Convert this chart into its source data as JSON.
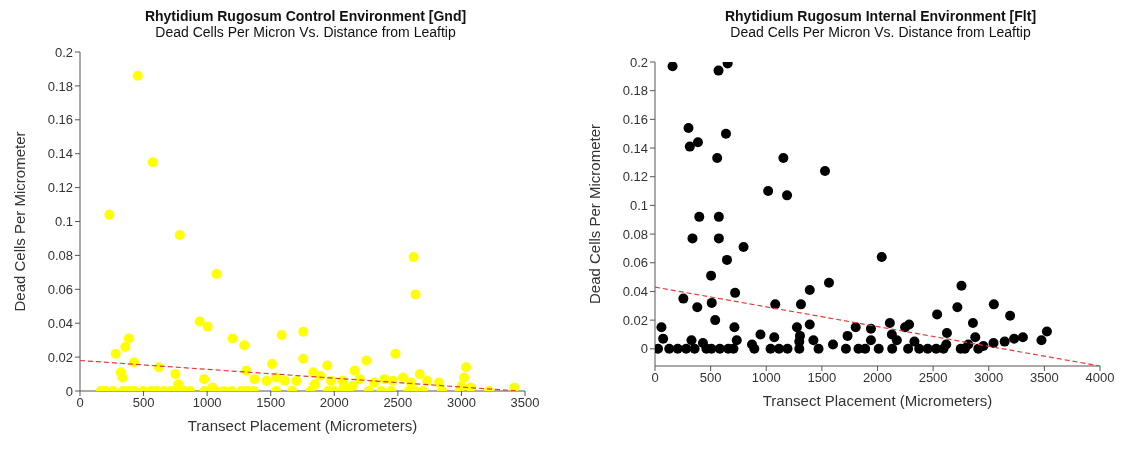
{
  "chart_data": [
    {
      "type": "scatter",
      "title": "Rhytidium Rugosum Control Environment [Gnd]",
      "subtitle": "Dead Cells Per Micron Vs. Distance from Leaftip",
      "xlabel": "Transect Placement (Micrometers)",
      "ylabel": "Dead Cells Per Micrometer",
      "xlim": [
        0,
        3500
      ],
      "xticks": [
        0,
        500,
        1000,
        1500,
        2000,
        2500,
        3000,
        3500
      ],
      "ylim": [
        0,
        0.2
      ],
      "yticks": [
        0,
        0.02,
        0.04,
        0.06,
        0.08,
        0.1,
        0.12,
        0.14,
        0.16,
        0.18,
        0.2
      ],
      "grid": false,
      "marker": "circle",
      "series": [
        {
          "color": "#ffff00",
          "x": [
            454,
            572,
            231,
            785,
            1074,
            2624,
            2639,
            941,
            1004,
            1199,
            1292,
            1586,
            1756,
            281,
            356,
            384,
            424,
            321,
            334,
            620,
            750,
            773,
            976,
            1041,
            1307,
            1510,
            1543,
            1611,
            1756,
            1834,
            1889,
            1945,
            1975,
            2065,
            2160,
            2200,
            2253,
            2313,
            2396,
            2461,
            2481,
            2541,
            2602,
            2672,
            2730,
            2823,
            3001,
            3021,
            3036,
            3073,
            3415,
            1372,
            1468,
            1701,
            1847,
            2075,
            2145,
            163,
            201,
            259,
            339,
            382,
            427,
            497,
            560,
            602,
            660,
            715,
            765,
            816,
            866,
            979,
            1066,
            1129,
            1192,
            1267,
            1317,
            1368,
            1543,
            1669,
            1814,
            1952,
            2002,
            2095,
            2271,
            2371,
            2446,
            2584,
            2634,
            2697,
            2848,
            2986,
            3217
          ],
          "values": [
            0.186,
            0.135,
            0.104,
            0.092,
            0.069,
            0.079,
            0.057,
            0.041,
            0.038,
            0.031,
            0.027,
            0.033,
            0.035,
            0.022,
            0.026,
            0.031,
            0.017,
            0.011,
            0.008,
            0.014,
            0.01,
            0.004,
            0.007,
            0.002,
            0.012,
            0.016,
            0.008,
            0.006,
            0.019,
            0.011,
            0.009,
            0.015,
            0.006,
            0.006,
            0.012,
            0.007,
            0.018,
            0.005,
            0.007,
            0.006,
            0.022,
            0.008,
            0.005,
            0.01,
            0.006,
            0.005,
            0.003,
            0.008,
            0.014,
            0.002,
            0.002,
            0.007,
            0.006,
            0.006,
            0.004,
            0.002,
            0.003,
            0,
            0,
            0,
            0,
            0,
            0,
            0,
            0,
            0,
            0,
            0,
            0,
            0,
            0,
            0,
            0,
            0,
            0,
            0,
            0,
            0,
            0,
            0,
            0,
            0,
            0,
            0,
            0,
            0,
            0,
            0,
            0,
            0,
            0,
            0,
            0
          ]
        },
        {
          "type": "line",
          "color": "#e03c3c",
          "line_style": "dashed",
          "marker": "none",
          "x": [
            0,
            3450
          ],
          "values": [
            0.018,
            0
          ]
        }
      ]
    },
    {
      "type": "scatter",
      "title": "Rhytidium Rugosum Internal Environment [Flt]",
      "subtitle": "Dead Cells Per Micron Vs. Distance from Leaftip",
      "xlabel": "Transect Placement (Micrometers)",
      "ylabel": "Dead Cells Per Micrometer",
      "xlim": [
        0,
        4000
      ],
      "xticks": [
        0,
        500,
        1000,
        1500,
        2000,
        2500,
        3000,
        3500,
        4000
      ],
      "ylim": [
        -0.012,
        0.2
      ],
      "yticks": [
        0,
        0.02,
        0.04,
        0.06,
        0.08,
        0.1,
        0.12,
        0.14,
        0.16,
        0.18,
        0.2
      ],
      "grid": false,
      "marker": "circle",
      "series": [
        {
          "color": "#000000",
          "x": [
            158,
            571,
            653,
            301,
            313,
            386,
            638,
            559,
            1154,
            1528,
            1017,
            1187,
            398,
            574,
            337,
            574,
            796,
            647,
            2038,
            504,
            1564,
            2755,
            255,
            720,
            1391,
            380,
            510,
            1081,
            1312,
            3046,
            2718,
            2536,
            3192,
            541,
            58,
            714,
            1276,
            1391,
            1804,
            1941,
            2111,
            2248,
            2284,
            2858,
            3523,
            2624,
            73,
            328,
            735,
            948,
            1072,
            1303,
            1424,
            1731,
            1941,
            2129,
            2332,
            2879,
            3043,
            3143,
            3228,
            3307,
            3474,
            2174,
            1297,
            1600,
            431,
            872,
            2618,
            2816,
            2952,
            27,
            128,
            204,
            280,
            356,
            462,
            507,
            583,
            659,
            705,
            893,
            1039,
            1115,
            1191,
            1297,
            1470,
            1716,
            1829,
            1889,
            2011,
            2132,
            2275,
            2375,
            2451,
            2527,
            2593,
            2748,
            2785,
            2906
          ],
          "values": [
            0.197,
            0.194,
            0.199,
            0.154,
            0.141,
            0.144,
            0.15,
            0.133,
            0.133,
            0.124,
            0.11,
            0.107,
            0.092,
            0.092,
            0.077,
            0.077,
            0.071,
            0.062,
            0.064,
            0.051,
            0.046,
            0.044,
            0.035,
            0.039,
            0.041,
            0.029,
            0.032,
            0.031,
            0.031,
            0.031,
            0.029,
            0.024,
            0.023,
            0.02,
            0.015,
            0.015,
            0.015,
            0.017,
            0.015,
            0.014,
            0.018,
            0.015,
            0.017,
            0.018,
            0.012,
            0.011,
            0.007,
            0.006,
            0.006,
            0.01,
            0.008,
            0.009,
            0.006,
            0.009,
            0.006,
            0.01,
            0.005,
            0.008,
            0.004,
            0.005,
            0.007,
            0.008,
            0.006,
            0.006,
            0.005,
            0.003,
            0.004,
            0.003,
            0.003,
            0.003,
            0.002,
            0,
            0,
            0,
            0,
            0,
            0,
            0,
            0,
            0,
            0,
            0,
            0,
            0,
            0,
            0,
            0,
            0,
            0,
            0,
            0,
            0,
            0,
            0,
            0,
            0,
            0,
            0,
            0,
            0
          ]
        },
        {
          "type": "line",
          "color": "#e03c3c",
          "line_style": "dashed",
          "marker": "none",
          "x": [
            0,
            4000
          ],
          "values": [
            0.043,
            -0.012
          ]
        }
      ]
    }
  ]
}
